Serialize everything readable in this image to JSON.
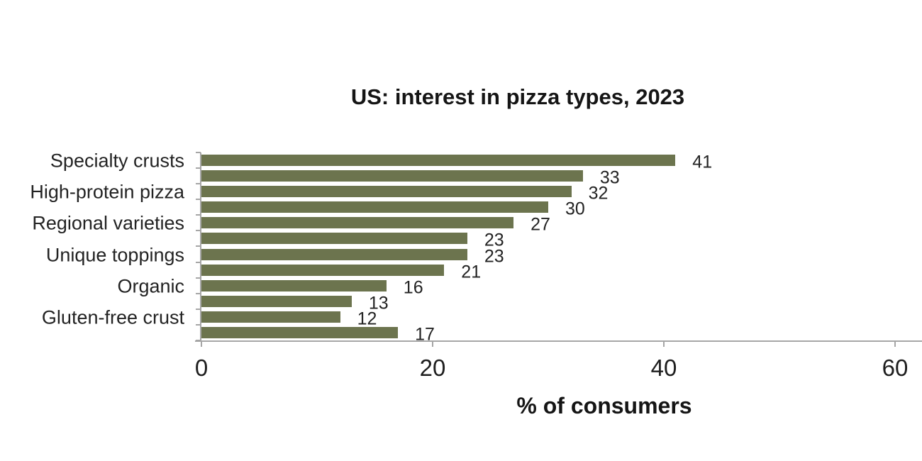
{
  "chart_data": {
    "type": "bar",
    "orientation": "horizontal",
    "title": "US: interest in pizza types, 2023",
    "xlabel": "% of consumers",
    "categories": [
      "Specialty crusts",
      "High-protein pizza",
      "Regional varieties",
      "Unique toppings",
      "Organic",
      "Gluten-free crust"
    ],
    "bars": [
      {
        "label": "Specialty crusts",
        "value": 41
      },
      {
        "label": "",
        "value": 33
      },
      {
        "label": "High-protein pizza",
        "value": 32
      },
      {
        "label": "",
        "value": 30
      },
      {
        "label": "Regional varieties",
        "value": 27
      },
      {
        "label": "",
        "value": 23
      },
      {
        "label": "Unique toppings",
        "value": 23
      },
      {
        "label": "",
        "value": 21
      },
      {
        "label": "Organic",
        "value": 16
      },
      {
        "label": "",
        "value": 13
      },
      {
        "label": "Gluten-free crust",
        "value": 12
      },
      {
        "label": "",
        "value": 17
      }
    ],
    "xticks": [
      0,
      20,
      40,
      60
    ],
    "xlim": [
      0,
      62.3
    ],
    "grid": false,
    "legend": false,
    "value_labels_shown": true,
    "colors": {
      "bar": "#6C744E",
      "axis": "#A6A6A6",
      "text": "#232323"
    }
  }
}
